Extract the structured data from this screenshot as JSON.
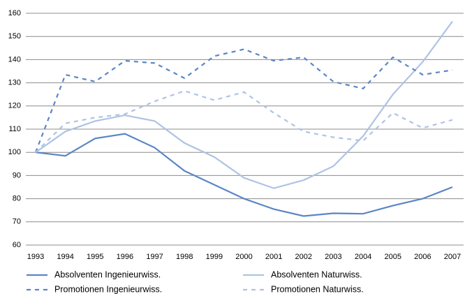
{
  "chart_data": {
    "type": "line",
    "categories": [
      "1993",
      "1994",
      "1995",
      "1996",
      "1997",
      "1998",
      "1999",
      "2000",
      "2001",
      "2002",
      "2003",
      "2004",
      "2005",
      "2006",
      "2007"
    ],
    "series": [
      {
        "name": "Absolventen Ingenieurwiss.",
        "color": "#5a86c6",
        "style": "solid",
        "values": [
          100,
          98.5,
          106,
          108,
          102,
          92,
          86,
          80,
          75.5,
          72.5,
          73.7,
          73.5,
          77,
          80,
          85
        ]
      },
      {
        "name": "Absolventen Naturwiss.",
        "color": "#aec3e3",
        "style": "solid",
        "values": [
          100,
          109,
          113.5,
          116,
          113.5,
          104,
          98,
          89,
          84.5,
          88,
          94,
          107,
          125,
          139,
          156.5
        ]
      },
      {
        "name": "Promotionen Ingenieurwiss.",
        "color": "#5a86c6",
        "style": "dashed",
        "values": [
          100,
          133.5,
          130.5,
          139.5,
          138.5,
          132,
          141.5,
          144.5,
          139.5,
          141,
          130.5,
          127.5,
          141,
          133.5,
          135.5
        ]
      },
      {
        "name": "Promotionen Naturwiss.",
        "color": "#aec3e3",
        "style": "dashed",
        "values": [
          100,
          112.5,
          115,
          116.5,
          122,
          126.5,
          122.5,
          126,
          117,
          109,
          106.5,
          105,
          117,
          110.5,
          114
        ]
      }
    ],
    "ylim": [
      60,
      160
    ],
    "yticks": [
      60,
      70,
      80,
      90,
      100,
      110,
      120,
      130,
      140,
      150,
      160
    ],
    "grid": true,
    "legend": "bottom"
  }
}
